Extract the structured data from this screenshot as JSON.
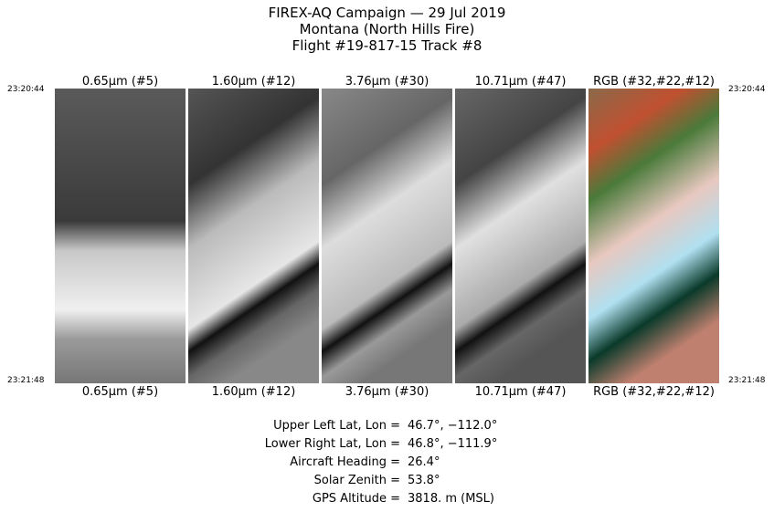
{
  "header": {
    "lines": [
      "FIREX-AQ Campaign — 29 Jul 2019",
      "Montana (North Hills Fire)",
      "Flight #19-817-15 Track #8"
    ]
  },
  "times": {
    "start": "23:20:44",
    "end": "23:21:48"
  },
  "panels": [
    {
      "label": "0.65μm (#5)"
    },
    {
      "label": "1.60μm (#12)"
    },
    {
      "label": "3.76μm (#30)"
    },
    {
      "label": "10.71μm (#47)"
    },
    {
      "label": "RGB (#32,#22,#12)"
    }
  ],
  "info": [
    {
      "label": "Upper Left Lat, Lon =",
      "value": "46.7°, −112.0°"
    },
    {
      "label": "Lower Right Lat, Lon =",
      "value": "46.8°, −111.9°"
    },
    {
      "label": "Aircraft Heading =",
      "value": "26.4°"
    },
    {
      "label": "Solar Zenith =",
      "value": "53.8°"
    },
    {
      "label": "GPS Altitude =",
      "value": "3818. m (MSL)"
    }
  ]
}
